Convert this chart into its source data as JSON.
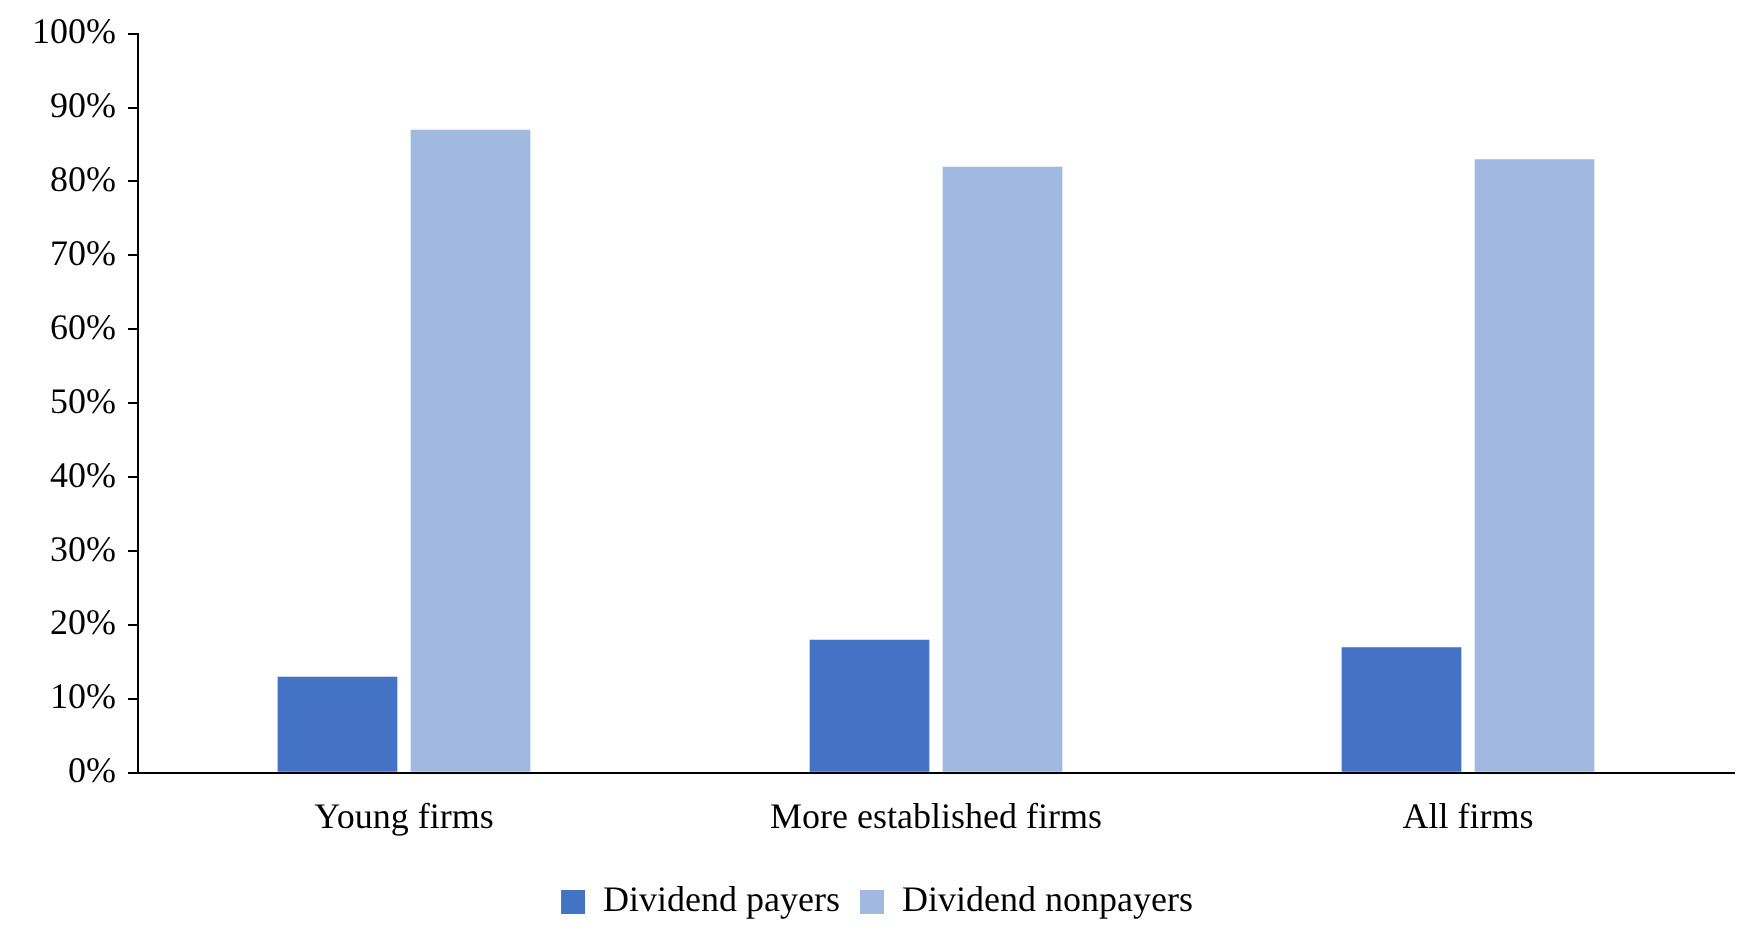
{
  "chart_data": {
    "type": "bar",
    "categories": [
      "Young firms",
      "More established firms",
      "All firms"
    ],
    "series": [
      {
        "name": "Dividend payers",
        "color": "#4472c4",
        "values": [
          13,
          18,
          17
        ]
      },
      {
        "name": "Dividend nonpayers",
        "color": "#a1b8e1",
        "values": [
          87,
          82,
          83
        ]
      }
    ],
    "ylim": [
      0,
      100
    ],
    "yticks": [
      {
        "value": 0,
        "label": "0%"
      },
      {
        "value": 10,
        "label": "10%"
      },
      {
        "value": 20,
        "label": "20%"
      },
      {
        "value": 30,
        "label": "30%"
      },
      {
        "value": 40,
        "label": "40%"
      },
      {
        "value": 50,
        "label": "50%"
      },
      {
        "value": 60,
        "label": "60%"
      },
      {
        "value": 70,
        "label": "70%"
      },
      {
        "value": 80,
        "label": "80%"
      },
      {
        "value": 90,
        "label": "90%"
      },
      {
        "value": 100,
        "label": "100%"
      }
    ],
    "grid": false,
    "legend": "bottom"
  }
}
